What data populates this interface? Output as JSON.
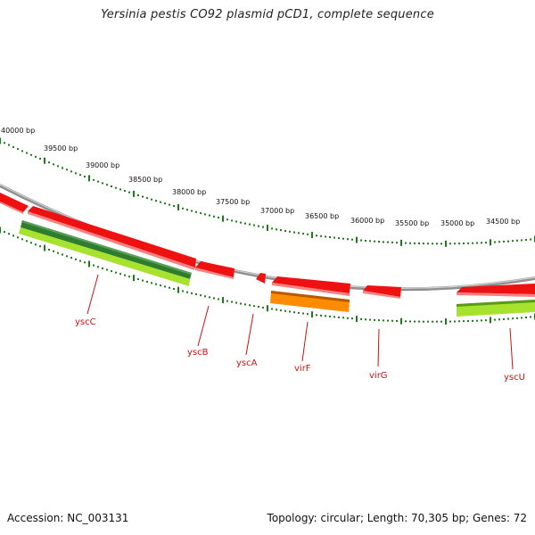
{
  "title": "Yersinia pestis CO92 plasmid pCD1, complete sequence",
  "footer": {
    "accession": "Accession: NC_003131",
    "summary": "Topology: circular; Length: 70,305 bp; Genes: 72"
  },
  "colors": {
    "backbone": "#8f8f8f",
    "tick": "#1a7d1a",
    "label": "#cc1111",
    "gene": "#ee1111",
    "gene_dark": "#2e7d2e",
    "gene_light": "#a6e22e",
    "gene_orange": "#ff8c00"
  },
  "scale_labels": [
    "40000 bp",
    "39500 bp",
    "39000 bp",
    "38500 bp",
    "38000 bp",
    "37500 bp",
    "37000 bp",
    "36500 bp",
    "36000 bp",
    "35500 bp",
    "35000 bp",
    "34500 bp"
  ],
  "gene_labels": [
    "yscC",
    "yscB",
    "yscA",
    "virF",
    "virG",
    "yscU"
  ]
}
